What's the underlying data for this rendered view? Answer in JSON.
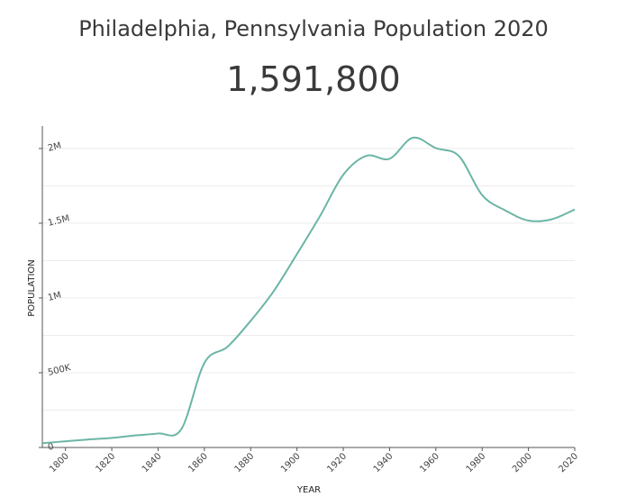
{
  "header": {
    "title": "Philadelphia, Pennsylvania Population 2020",
    "headline_value": "1,591,800"
  },
  "chart_data": {
    "type": "line",
    "title": "Philadelphia, Pennsylvania Population 2020",
    "xlabel": "YEAR",
    "ylabel": "POPULATION",
    "xlim": [
      1790,
      2020
    ],
    "ylim": [
      0,
      2150000
    ],
    "x_ticks": [
      1800,
      1820,
      1840,
      1860,
      1880,
      1900,
      1920,
      1940,
      1960,
      1980,
      2000,
      2020
    ],
    "y_ticks": [
      0,
      500000,
      1000000,
      1500000,
      2000000
    ],
    "y_tick_labels": [
      "0",
      "500K",
      "1M",
      "1.5M",
      "2M"
    ],
    "grid": true,
    "color": "#6bb5a6",
    "series": [
      {
        "x": [
          1790,
          1800,
          1810,
          1820,
          1830,
          1840,
          1850,
          1860,
          1870,
          1880,
          1890,
          1900,
          1910,
          1920,
          1930,
          1940,
          1950,
          1960,
          1970,
          1980,
          1990,
          2000,
          2010,
          2020
        ],
        "values": [
          28500,
          41200,
          53700,
          63800,
          80500,
          93700,
          121400,
          565500,
          674000,
          847200,
          1047000,
          1293700,
          1549000,
          1824000,
          1951000,
          1931300,
          2071600,
          2002500,
          1948600,
          1688200,
          1585600,
          1517600,
          1526000,
          1591800
        ]
      }
    ]
  }
}
